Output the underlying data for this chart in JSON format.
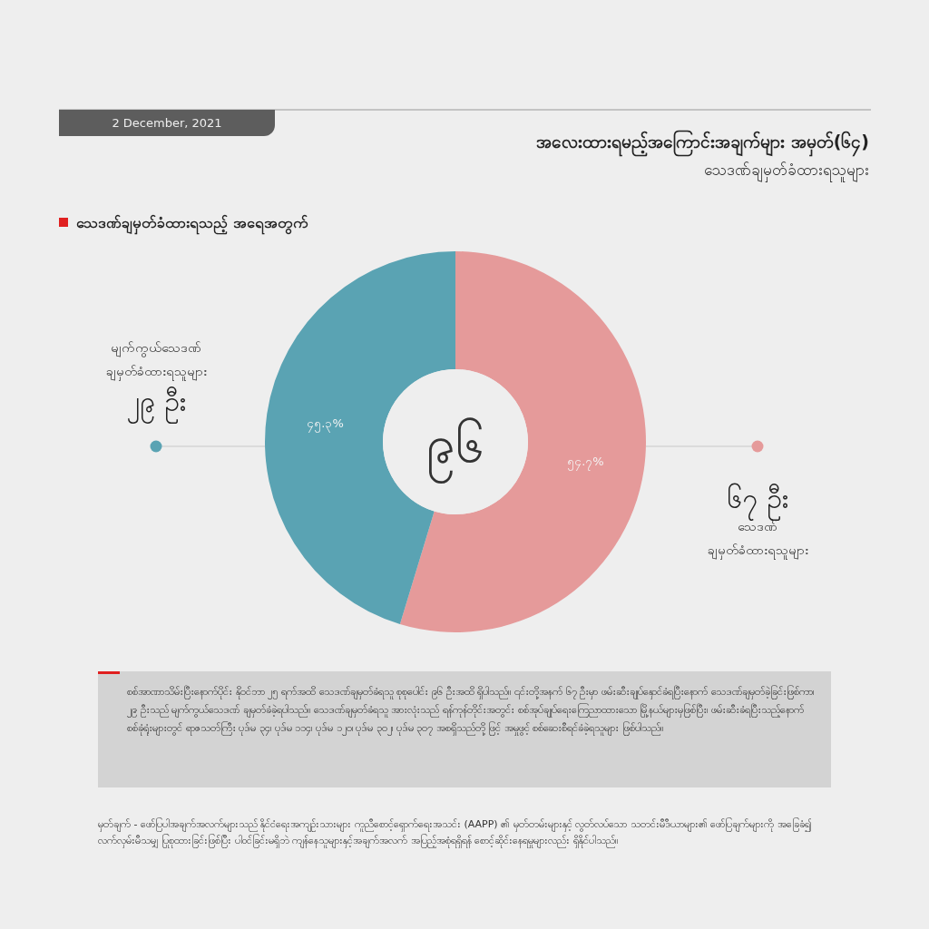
{
  "chart_data": {
    "type": "donut",
    "title": "အလေးထားရမည့်အကြောင်းအချက်များ အမှတ်(၆၄)",
    "subtitle": "သေဒဏ်ချမှတ်ခံထားရသူများ",
    "categories": [
      "သေဒဏ် ချမှတ်ခံထားရသူများ",
      "မျက်ကွယ်သေဒဏ် ချမှတ်ခံထားရသူများ"
    ],
    "values": [
      54.7,
      45.3
    ],
    "colors": [
      "#e59a9a",
      "#5aa3b3"
    ],
    "value_labels": [
      "၅၄.၇%",
      "၄၅.၃%"
    ],
    "annotations": [
      "2 December, 2021",
      "သေဒဏ်ချမှတ်ခံထားရသည့် အရေအတွက်",
      "၉၆",
      "၆၇ ဦး",
      "၂၉ ဦး",
      "စစ်အာဏာသိမ်းပြီးနောက်ပိုင်း နိုဝင်ဘာ ၂၅ ရက်အထိ သေဒဏ်ချမှတ်ခံရသူ စုစုပေါင်း ၉၆ ဦးအထိ ရှိပါသည်။ ၎င်းတို့အနက် ၆၇ ဦးမှာ ဖမ်းဆီးချုပ်နှောင်ခံရပြီးနောက် သေဒဏ်ချမှတ်ခဲ့ခြင်းဖြစ်ကာ၊ ၂၉ ဦးသည် မျက်ကွယ်သေဒဏ် ချမှတ်ခံခဲ့ရပါသည်။ သေဒဏ်ချမှတ်ခံရသူ အားလုံးသည် ရန်ကုန်တိုင်းအတွင်း စစ်အုပ်ချုပ်ရေးကြေညာထားသော မြို့နယ်များမှဖြစ်ပြီး၊ ဖမ်းဆီးခံရပြီးသည့်နောက် စစ်ခုံရုံးများတွင် ရာဇသတ်ကြီး ပုဒ်မ ၃၄၊ ပုဒ်မ ၁၁၄၊ ပုဒ်မ ၁၂၀၊ ပုဒ်မ ၃၀၂၊ ပုဒ်မ ၃၀၇ အစရှိသည်တို့ဖြင့် အမှုဖွင့် စစ်ဆေးစီရင်ခံခဲ့ရသူများ ဖြစ်ပါသည်။",
      "မှတ်ချက် - ဖော်ပြပါအချက်အလက်များသည် နိုင်ငံရေးအကျဉ်းသားများ ကူညီစောင့်ရှောက်ရေးအသင်း (AAPP) ၏ မှတ်တမ်းများနှင့် လွတ်လပ်သော သတင်းမီဒီယာများ၏ ဖော်ပြချက်များကို အခြေခံ၍ လက်လှမ်းမီသမျှ ပြုစုထားခြင်းဖြစ်ပြီး ပါဝင်ခြင်းမရှိဘဲ ကျန်နေသူများနှင့်အချက်အလက် အပြည့်အစုံရရှိရန် စောင့်ဆိုင်းနေရမှုများလည်း ရှိနိုင်ပါသည်။"
    ]
  }
}
